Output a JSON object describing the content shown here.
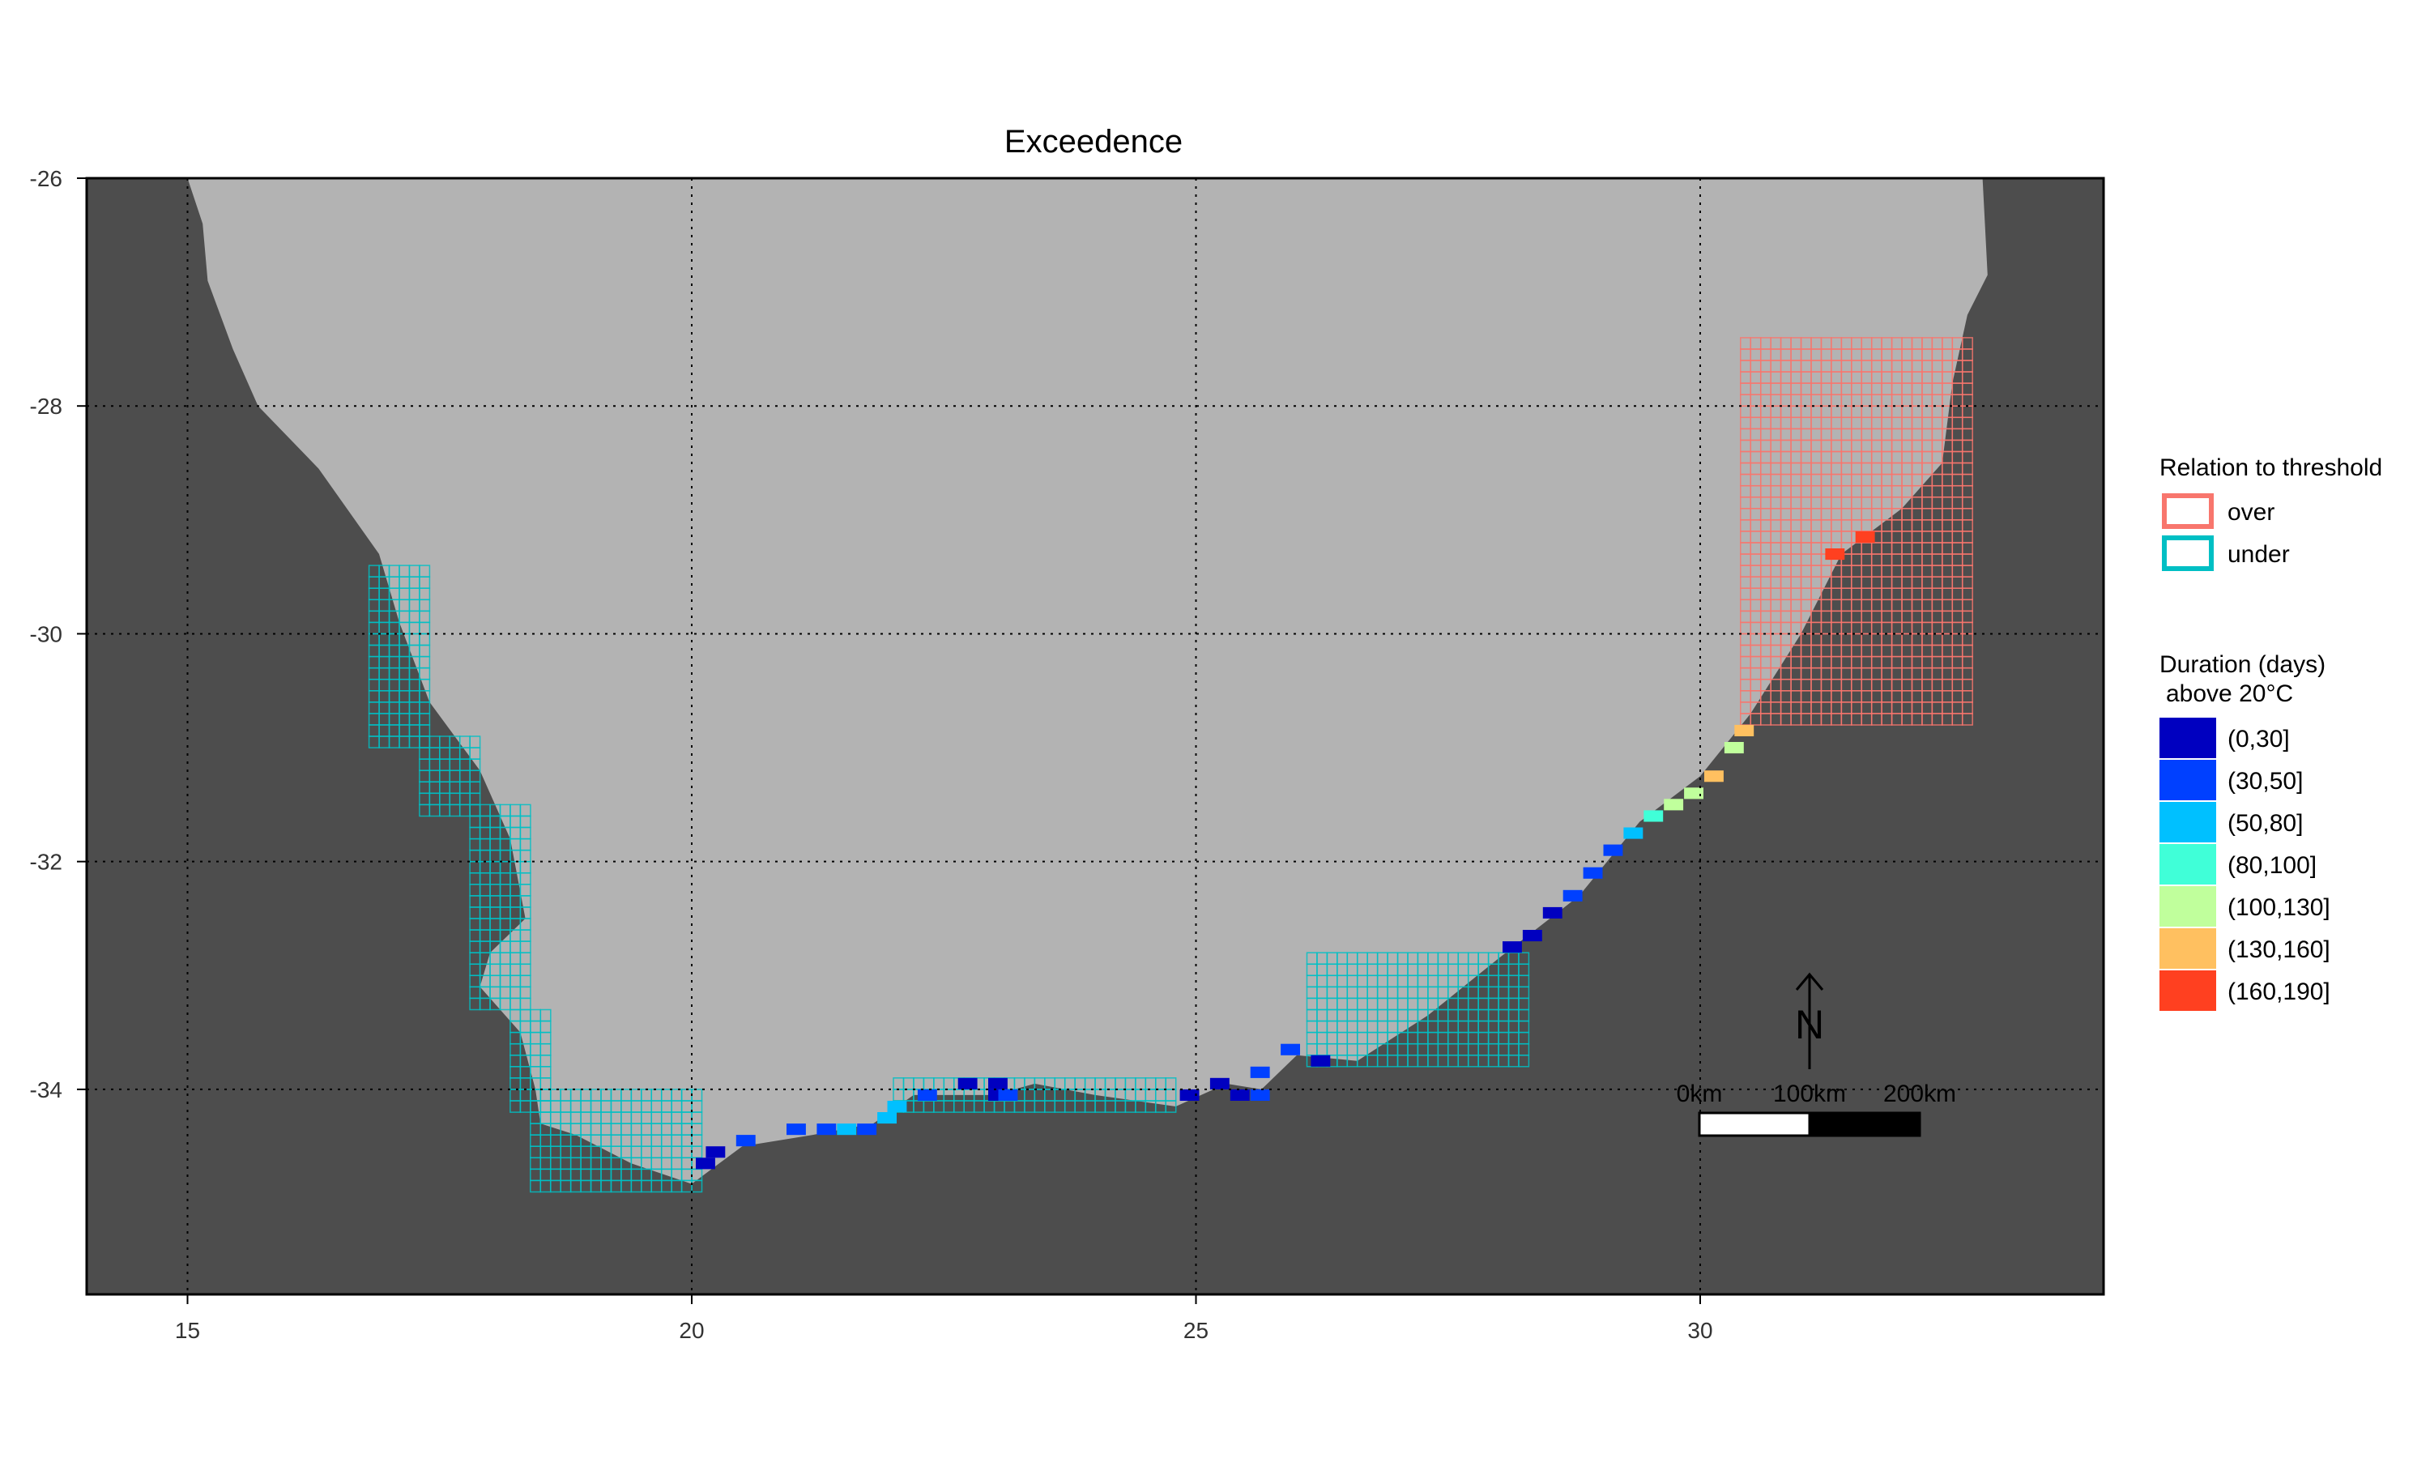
{
  "title": "Exceedence",
  "colors": {
    "ocean": "#4d4d4d",
    "land": "#b3b3b3",
    "grid": "#000000",
    "over": "#f8766d",
    "under": "#00bfc4"
  },
  "chart_data": {
    "type": "map",
    "title": "Exceedence",
    "xlim": [
      14,
      34
    ],
    "ylim": [
      -35.8,
      -26
    ],
    "x_ticks": [
      15,
      20,
      25,
      30
    ],
    "y_ticks": [
      -26,
      -28,
      -30,
      -32,
      -34
    ],
    "x_tick_labels": [
      "15",
      "20",
      "25",
      "30"
    ],
    "y_tick_labels": [
      "-26",
      "-28",
      "-30",
      "-32",
      "-34"
    ],
    "grid": true,
    "grid_style": "dotted",
    "legend_placement": "right",
    "threshold_legend": {
      "title": "Relation to threshold",
      "items": [
        {
          "label": "over",
          "color": "#f8766d"
        },
        {
          "label": "under",
          "color": "#00bfc4"
        }
      ]
    },
    "duration_legend": {
      "title_line1": "Duration (days)",
      "title_line2": "above 20°C",
      "bins": [
        {
          "label": "(0,30]",
          "color": "#0000c0"
        },
        {
          "label": "(30,50]",
          "color": "#0040ff"
        },
        {
          "label": "(50,80]",
          "color": "#00c0ff"
        },
        {
          "label": "(80,100]",
          "color": "#40ffd8"
        },
        {
          "label": "(100,130]",
          "color": "#c0ff9c"
        },
        {
          "label": "(130,160]",
          "color": "#ffc060"
        },
        {
          "label": "(160,190]",
          "color": "#ff4020"
        }
      ]
    },
    "scale_bar": {
      "labels": [
        "0km",
        "100km",
        "200km"
      ]
    },
    "north_arrow": {
      "label": "N"
    },
    "coastline": [
      [
        15.0,
        -26.0
      ],
      [
        15.15,
        -26.4
      ],
      [
        15.2,
        -26.9
      ],
      [
        15.45,
        -27.5
      ],
      [
        15.7,
        -28.0
      ],
      [
        16.3,
        -28.55
      ],
      [
        16.9,
        -29.3
      ],
      [
        17.1,
        -29.9
      ],
      [
        17.4,
        -30.6
      ],
      [
        17.9,
        -31.2
      ],
      [
        18.2,
        -31.8
      ],
      [
        18.35,
        -32.5
      ],
      [
        18.0,
        -32.8
      ],
      [
        17.9,
        -33.1
      ],
      [
        18.3,
        -33.5
      ],
      [
        18.45,
        -34.0
      ],
      [
        18.5,
        -34.3
      ],
      [
        18.85,
        -34.4
      ],
      [
        19.4,
        -34.65
      ],
      [
        20.0,
        -34.83
      ],
      [
        20.5,
        -34.5
      ],
      [
        21.2,
        -34.4
      ],
      [
        21.8,
        -34.3
      ],
      [
        22.2,
        -34.05
      ],
      [
        23.0,
        -34.05
      ],
      [
        23.4,
        -33.95
      ],
      [
        24.0,
        -34.05
      ],
      [
        24.8,
        -34.15
      ],
      [
        25.3,
        -33.95
      ],
      [
        25.65,
        -34.0
      ],
      [
        26.0,
        -33.7
      ],
      [
        26.6,
        -33.75
      ],
      [
        27.3,
        -33.35
      ],
      [
        28.0,
        -32.85
      ],
      [
        28.8,
        -32.3
      ],
      [
        29.4,
        -31.65
      ],
      [
        30.0,
        -31.25
      ],
      [
        30.5,
        -30.7
      ],
      [
        31.0,
        -30.0
      ],
      [
        31.4,
        -29.3
      ],
      [
        32.0,
        -28.9
      ],
      [
        32.4,
        -28.5
      ],
      [
        32.5,
        -27.8
      ],
      [
        32.65,
        -27.2
      ],
      [
        32.85,
        -26.85
      ],
      [
        32.8,
        -26.0
      ]
    ],
    "threshold_cells": [
      {
        "status": "under",
        "x0": 16.8,
        "x1": 17.4,
        "y0": -29.4,
        "y1": -31.0
      },
      {
        "status": "under",
        "x0": 17.3,
        "x1": 17.9,
        "y0": -30.9,
        "y1": -31.6
      },
      {
        "status": "under",
        "x0": 17.8,
        "x1": 18.4,
        "y0": -31.5,
        "y1": -32.6
      },
      {
        "status": "under",
        "x0": 17.8,
        "x1": 18.4,
        "y0": -32.6,
        "y1": -33.3
      },
      {
        "status": "under",
        "x0": 18.2,
        "x1": 18.6,
        "y0": -33.3,
        "y1": -34.2
      },
      {
        "status": "under",
        "x0": 18.4,
        "x1": 20.1,
        "y0": -34.0,
        "y1": -34.9
      },
      {
        "status": "under",
        "x0": 22.0,
        "x1": 24.8,
        "y0": -33.9,
        "y1": -34.2
      },
      {
        "status": "under",
        "x0": 26.1,
        "x1": 28.3,
        "y0": -32.8,
        "y1": -33.8
      },
      {
        "status": "over",
        "x0": 30.4,
        "x1": 32.7,
        "y0": -27.4,
        "y1": -30.8
      }
    ],
    "duration_cells": [
      {
        "x": 20.1,
        "y": -34.65,
        "bin": "(0,30]"
      },
      {
        "x": 20.2,
        "y": -34.55,
        "bin": "(0,30]"
      },
      {
        "x": 20.5,
        "y": -34.45,
        "bin": "(30,50]"
      },
      {
        "x": 21.0,
        "y": -34.35,
        "bin": "(30,50]"
      },
      {
        "x": 21.3,
        "y": -34.35,
        "bin": "(30,50]"
      },
      {
        "x": 21.5,
        "y": -34.35,
        "bin": "(50,80]"
      },
      {
        "x": 21.7,
        "y": -34.35,
        "bin": "(30,50]"
      },
      {
        "x": 21.9,
        "y": -34.25,
        "bin": "(50,80]"
      },
      {
        "x": 22.0,
        "y": -34.15,
        "bin": "(50,80]"
      },
      {
        "x": 22.3,
        "y": -34.05,
        "bin": "(30,50]"
      },
      {
        "x": 22.7,
        "y": -33.95,
        "bin": "(0,30]"
      },
      {
        "x": 23.0,
        "y": -34.05,
        "bin": "(0,30]"
      },
      {
        "x": 23.0,
        "y": -33.95,
        "bin": "(0,30]"
      },
      {
        "x": 23.1,
        "y": -34.05,
        "bin": "(30,50]"
      },
      {
        "x": 24.9,
        "y": -34.05,
        "bin": "(0,30]"
      },
      {
        "x": 25.2,
        "y": -33.95,
        "bin": "(0,30]"
      },
      {
        "x": 25.4,
        "y": -34.05,
        "bin": "(0,30]"
      },
      {
        "x": 25.6,
        "y": -34.05,
        "bin": "(30,50]"
      },
      {
        "x": 25.6,
        "y": -33.85,
        "bin": "(30,50]"
      },
      {
        "x": 25.9,
        "y": -33.65,
        "bin": "(30,50]"
      },
      {
        "x": 26.2,
        "y": -33.75,
        "bin": "(0,30]"
      },
      {
        "x": 28.1,
        "y": -32.75,
        "bin": "(0,30]"
      },
      {
        "x": 28.3,
        "y": -32.65,
        "bin": "(0,30]"
      },
      {
        "x": 28.5,
        "y": -32.45,
        "bin": "(0,30]"
      },
      {
        "x": 28.7,
        "y": -32.3,
        "bin": "(30,50]"
      },
      {
        "x": 28.9,
        "y": -32.1,
        "bin": "(30,50]"
      },
      {
        "x": 29.1,
        "y": -31.9,
        "bin": "(30,50]"
      },
      {
        "x": 29.3,
        "y": -31.75,
        "bin": "(50,80]"
      },
      {
        "x": 29.5,
        "y": -31.6,
        "bin": "(80,100]"
      },
      {
        "x": 29.7,
        "y": -31.5,
        "bin": "(100,130]"
      },
      {
        "x": 29.9,
        "y": -31.4,
        "bin": "(100,130]"
      },
      {
        "x": 30.1,
        "y": -31.25,
        "bin": "(130,160]"
      },
      {
        "x": 30.3,
        "y": -31.0,
        "bin": "(100,130]"
      },
      {
        "x": 30.4,
        "y": -30.85,
        "bin": "(130,160]"
      },
      {
        "x": 31.3,
        "y": -29.3,
        "bin": "(160,190]"
      },
      {
        "x": 31.6,
        "y": -29.15,
        "bin": "(160,190]"
      }
    ]
  }
}
